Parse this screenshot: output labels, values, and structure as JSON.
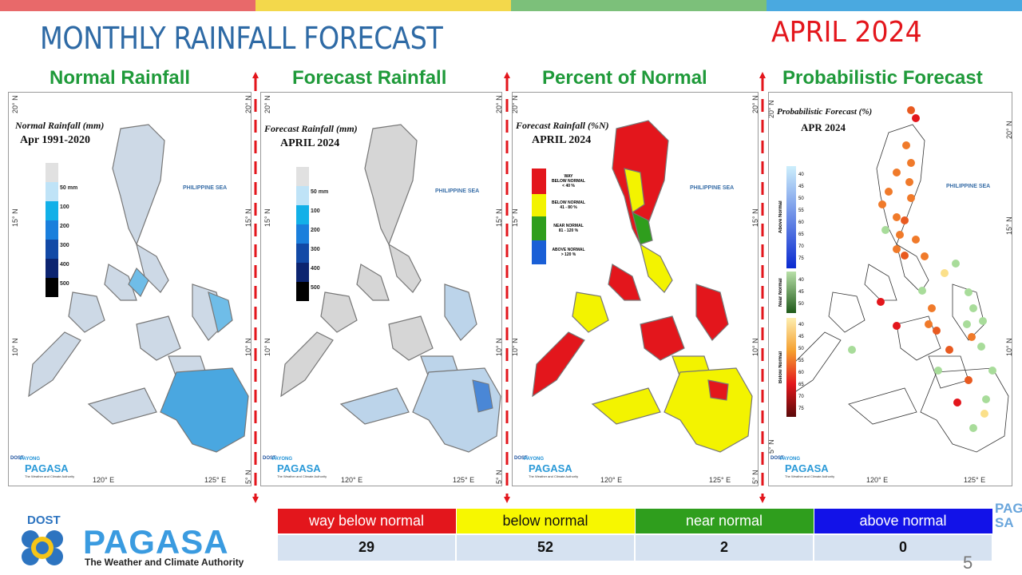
{
  "header": {
    "title": "MONTHLY RAINFALL FORECAST",
    "month": "APRIL 2024",
    "colors": [
      "#e8696a",
      "#f3d84b",
      "#7cc07a",
      "#4aa9e0"
    ]
  },
  "panels": [
    {
      "title": "Normal Rainfall",
      "caption": "Normal Rainfall (mm)",
      "subcaption": "Apr 1991-2020",
      "legend": [
        "50 mm",
        "100",
        "200",
        "300",
        "400",
        "500"
      ]
    },
    {
      "title": "Forecast Rainfall",
      "caption": "Forecast Rainfall (mm)",
      "subcaption": "APRIL 2024",
      "legend": [
        "50 mm",
        "100",
        "200",
        "300",
        "400",
        "500"
      ]
    },
    {
      "title": "Percent of Normal",
      "caption": "Forecast Rainfall (%N)",
      "subcaption": "APRIL 2024",
      "legend": [
        {
          "label": "WAY\nBELOW NORMAL\n< 40 %",
          "color": "#e3161c"
        },
        {
          "label": "BELOW NORMAL\n41 - 80 %",
          "color": "#f3f300"
        },
        {
          "label": "NEAR NORMAL\n81 - 120 %",
          "color": "#2f9e1d"
        },
        {
          "label": "ABOVE NORMAL\n> 120 %",
          "color": "#1a5fd6"
        }
      ]
    },
    {
      "title": "Probabilistic Forecast",
      "caption": "Probabilistic Forecast (%)",
      "subcaption": "APR 2024",
      "legend_groups": [
        {
          "name": "Above Normal",
          "values": [
            "40",
            "45",
            "50",
            "55",
            "60",
            "65",
            "70",
            "75"
          ]
        },
        {
          "name": "Near Normal",
          "values": [
            "40",
            "45",
            "50"
          ]
        },
        {
          "name": "Below Normal",
          "values": [
            "40",
            "45",
            "50",
            "55",
            "60",
            "65",
            "70",
            "75"
          ]
        }
      ]
    }
  ],
  "map_labels": {
    "sea": "PHILIPPINE SEA",
    "lat": [
      "20° N",
      "15° N",
      "10° N",
      "5° N"
    ],
    "lon": [
      "120° E",
      "125° E"
    ]
  },
  "brand": {
    "dost": "DOST",
    "payong": "PAYONG",
    "name": "PAGASA",
    "tagline": "The Weather and Climate Authority"
  },
  "summary": {
    "headers": [
      "way below normal",
      "below normal",
      "near normal",
      "above normal"
    ],
    "header_colors": [
      "#e3161c",
      "#f7f700",
      "#2f9e1d",
      "#1212e8"
    ],
    "values": [
      "29",
      "52",
      "2",
      "0"
    ]
  },
  "page_number": "5",
  "right_stub": "PAG\nSA"
}
